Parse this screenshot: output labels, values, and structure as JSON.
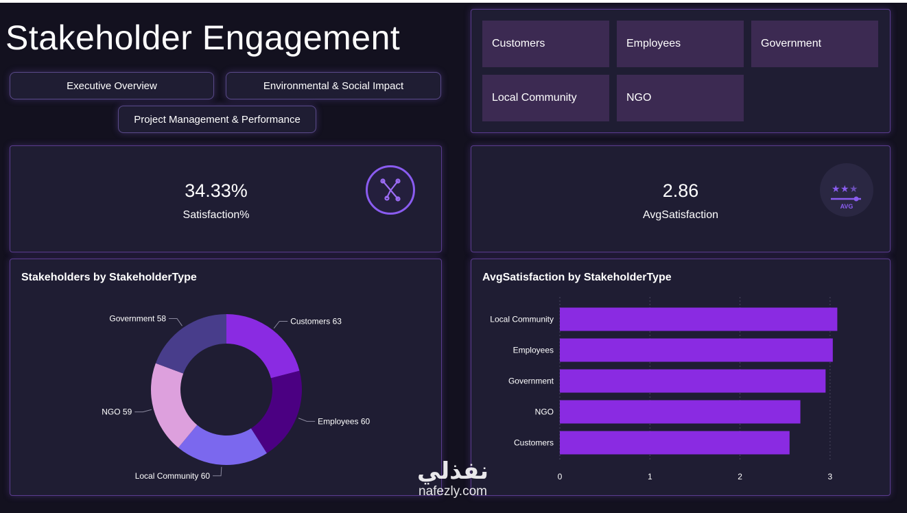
{
  "title": "Stakeholder Engagement",
  "nav": [
    {
      "label": "Executive Overview"
    },
    {
      "label": "Environmental & Social Impact"
    },
    {
      "label": "Project Management & Performance"
    }
  ],
  "slicer": {
    "items": [
      "Customers",
      "Employees",
      "Government",
      "Local Community",
      "NGO"
    ]
  },
  "kpis": [
    {
      "value": "34.33%",
      "label": "Satisfaction%",
      "icon": "network-icon"
    },
    {
      "value": "2.86",
      "label": "AvgSatisfaction",
      "icon": "stars-avg-icon",
      "icon_text": "AVG"
    }
  ],
  "colors": {
    "background": "#13111f",
    "panel": "#1f1d33",
    "panel_border": "#5b3c8f",
    "slicer_item": "#3c2a52",
    "bar": "#8a2be2"
  },
  "watermark": {
    "arabic": "نفذلي",
    "latin": "nafezly.com"
  },
  "chart_data": [
    {
      "type": "pie",
      "variant": "donut",
      "title": "Stakeholders by StakeholderType",
      "categories": [
        "Customers",
        "Employees",
        "Local Community",
        "NGO",
        "Government"
      ],
      "values": [
        63,
        60,
        60,
        59,
        58
      ],
      "colors": [
        "#8a2be2",
        "#4b0082",
        "#7b68ee",
        "#dda0dd",
        "#483d8b"
      ],
      "labels": [
        "Customers 63",
        "Employees 60",
        "Local Community 60",
        "NGO 59",
        "Government 58"
      ]
    },
    {
      "type": "bar",
      "orientation": "horizontal",
      "title": "AvgSatisfaction by StakeholderType",
      "categories": [
        "Local Community",
        "Employees",
        "Government",
        "NGO",
        "Customers"
      ],
      "values": [
        3.08,
        3.03,
        2.95,
        2.67,
        2.55
      ],
      "xlim": [
        0,
        3.2
      ],
      "xticks": [
        "0",
        "1",
        "2",
        "3"
      ],
      "grid": true
    }
  ]
}
